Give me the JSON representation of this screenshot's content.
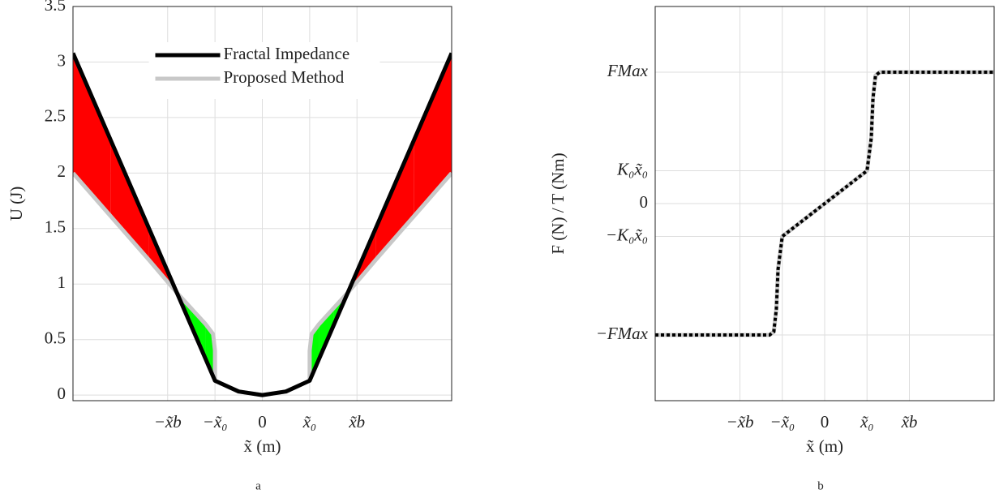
{
  "chart_data": [
    {
      "type": "line",
      "caption": "a",
      "x_label": "x̃ (m)",
      "y_label": "U (J)",
      "xlim": [
        -2,
        2
      ],
      "ylim": [
        -0.05,
        3.5
      ],
      "xticks": [
        {
          "value": -1,
          "label": "−x̃b"
        },
        {
          "value": -0.5,
          "label": "−x̃₀"
        },
        0,
        {
          "value": 0.5,
          "label": "x̃₀"
        },
        {
          "value": 1,
          "label": "x̃b"
        }
      ],
      "yticks": [
        0,
        0.5,
        1,
        1.5,
        2,
        2.5,
        3,
        3.5
      ],
      "grid": true,
      "legend": "upper center",
      "fill_colors": {
        "higher": "#ff0000",
        "lower": "#00ff00"
      },
      "x": [
        -2,
        -1.6,
        -1.2,
        -0.9,
        -0.75,
        -0.6,
        -0.52,
        -0.5,
        -0.5,
        -0.25,
        0,
        0.25,
        0.5,
        0.5,
        0.52,
        0.6,
        0.75,
        0.9,
        1.2,
        1.6,
        2
      ],
      "series": [
        {
          "name": "Fractal Impedance",
          "color": "#000000",
          "values": [
            3.08,
            2.293,
            1.507,
            0.917,
            0.622,
            0.327,
            0.169,
            0.13,
            0.13,
            0.0325,
            0,
            0.0325,
            0.13,
            0.13,
            0.169,
            0.327,
            0.622,
            0.917,
            1.507,
            2.293,
            3.08
          ]
        },
        {
          "name": "Proposed Method",
          "color": "#c8c8c8",
          "values": [
            2.0,
            1.61,
            1.22,
            0.92,
            0.78,
            0.64,
            0.55,
            0.4,
            0.13,
            0.0325,
            0,
            0.0325,
            0.13,
            0.4,
            0.55,
            0.64,
            0.78,
            0.92,
            1.22,
            1.61,
            2.0
          ]
        }
      ]
    },
    {
      "type": "line",
      "caption": "b",
      "x_label": "x̃ (m)",
      "y_label": "F (N) / T (Nm)",
      "xlim": [
        -2,
        2
      ],
      "ylim": [
        -3,
        3
      ],
      "xticks": [
        {
          "value": -1,
          "label": "−x̃b"
        },
        {
          "value": -0.5,
          "label": "−x̃₀"
        },
        0,
        {
          "value": 0.5,
          "label": "x̃₀"
        },
        {
          "value": 1,
          "label": "x̃b"
        }
      ],
      "yticks": [
        {
          "value": -2,
          "label": "−FMax"
        },
        {
          "value": -0.5,
          "label": "−K₀x̃₀"
        },
        0,
        {
          "value": 0.5,
          "label": "K₀x̃₀"
        },
        {
          "value": 2,
          "label": "FMax"
        }
      ],
      "grid": true,
      "x": [
        -2,
        -1,
        -0.65,
        -0.6,
        -0.57,
        -0.55,
        -0.52,
        -0.5,
        0,
        0.5,
        0.52,
        0.55,
        0.57,
        0.6,
        0.65,
        1,
        2
      ],
      "series": [
        {
          "color": "#c8c8c8",
          "overlay_color": "#000000",
          "values": [
            -2,
            -2,
            -2,
            -1.95,
            -1.6,
            -1.0,
            -0.7,
            -0.5,
            0,
            0.5,
            0.7,
            1.0,
            1.6,
            1.95,
            2,
            2,
            2
          ]
        }
      ]
    }
  ]
}
